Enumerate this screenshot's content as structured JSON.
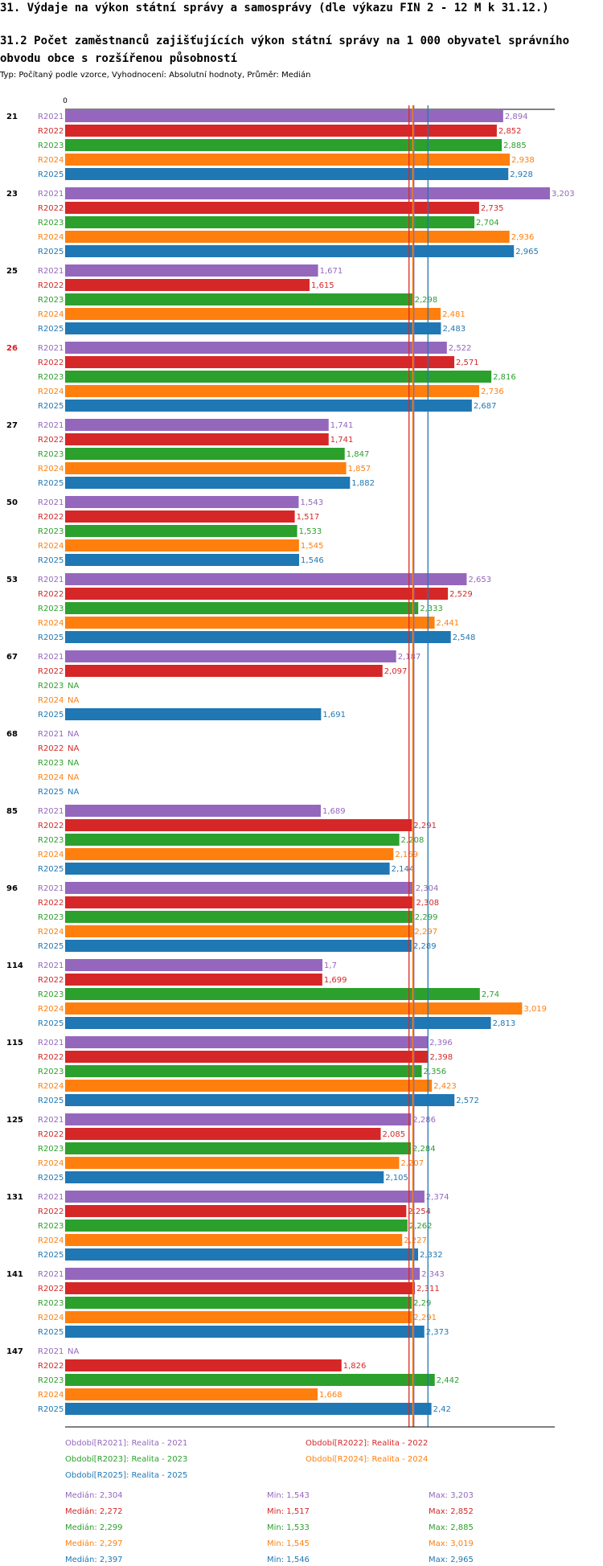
{
  "header": {
    "title": "31. Výdaje na výkon státní správy a samosprávy (dle výkazu FIN 2 - 12 M k 31.12.)",
    "subtitle": "31.2 Počet zaměstnanců zajišťujících výkon státní správy na 1 000 obyvatel správního obvodu obce s rozšířenou působností",
    "type_line": "Typ: Počítaný podle vzorce, Vyhodnocení: Absolutní hodnoty, Průměr: Medián"
  },
  "chart_data": {
    "type": "bar",
    "orientation": "horizontal",
    "xlim": [
      0,
      3.203
    ],
    "axis_zero_label": "0",
    "series": [
      {
        "name": "R2021",
        "color": "#9467bd"
      },
      {
        "name": "R2022",
        "color": "#d62728"
      },
      {
        "name": "R2023",
        "color": "#2ca02c"
      },
      {
        "name": "R2024",
        "color": "#ff7f0e"
      },
      {
        "name": "R2025",
        "color": "#1f77b4"
      }
    ],
    "groups": [
      {
        "label": "21",
        "highlight": false,
        "values": [
          2.894,
          2.852,
          2.885,
          2.938,
          2.928
        ],
        "labels": [
          "2,894",
          "2,852",
          "2,885",
          "2,938",
          "2,928"
        ]
      },
      {
        "label": "23",
        "highlight": false,
        "values": [
          3.203,
          2.735,
          2.704,
          2.936,
          2.965
        ],
        "labels": [
          "3,203",
          "2,735",
          "2,704",
          "2,936",
          "2,965"
        ]
      },
      {
        "label": "25",
        "highlight": false,
        "values": [
          1.671,
          1.615,
          2.298,
          2.481,
          2.483
        ],
        "labels": [
          "1,671",
          "1,615",
          "2,298",
          "2,481",
          "2,483"
        ]
      },
      {
        "label": "26",
        "highlight": true,
        "values": [
          2.522,
          2.571,
          2.816,
          2.736,
          2.687
        ],
        "labels": [
          "2,522",
          "2,571",
          "2,816",
          "2,736",
          "2,687"
        ]
      },
      {
        "label": "27",
        "highlight": false,
        "values": [
          1.741,
          1.741,
          1.847,
          1.857,
          1.882
        ],
        "labels": [
          "1,741",
          "1,741",
          "1,847",
          "1,857",
          "1,882"
        ]
      },
      {
        "label": "50",
        "highlight": false,
        "values": [
          1.543,
          1.517,
          1.533,
          1.545,
          1.546
        ],
        "labels": [
          "1,543",
          "1,517",
          "1,533",
          "1,545",
          "1,546"
        ]
      },
      {
        "label": "53",
        "highlight": false,
        "values": [
          2.653,
          2.529,
          2.333,
          2.441,
          2.548
        ],
        "labels": [
          "2,653",
          "2,529",
          "2,333",
          "2,441",
          "2,548"
        ]
      },
      {
        "label": "67",
        "highlight": false,
        "values": [
          2.187,
          2.097,
          null,
          null,
          1.691
        ],
        "labels": [
          "2,187",
          "2,097",
          "NA",
          "NA",
          "1,691"
        ]
      },
      {
        "label": "68",
        "highlight": false,
        "values": [
          null,
          null,
          null,
          null,
          null
        ],
        "labels": [
          "NA",
          "NA",
          "NA",
          "NA",
          "NA"
        ]
      },
      {
        "label": "85",
        "highlight": false,
        "values": [
          1.689,
          2.291,
          2.208,
          2.169,
          2.144
        ],
        "labels": [
          "1,689",
          "2,291",
          "2,208",
          "2,169",
          "2,144"
        ]
      },
      {
        "label": "96",
        "highlight": false,
        "values": [
          2.304,
          2.308,
          2.299,
          2.297,
          2.289
        ],
        "labels": [
          "2,304",
          "2,308",
          "2,299",
          "2,297",
          "2,289"
        ]
      },
      {
        "label": "114",
        "highlight": false,
        "values": [
          1.7,
          1.699,
          2.74,
          3.019,
          2.813
        ],
        "labels": [
          "1,7",
          "1,699",
          "2,74",
          "3,019",
          "2,813"
        ]
      },
      {
        "label": "115",
        "highlight": false,
        "values": [
          2.396,
          2.398,
          2.356,
          2.423,
          2.572
        ],
        "labels": [
          "2,396",
          "2,398",
          "2,356",
          "2,423",
          "2,572"
        ]
      },
      {
        "label": "125",
        "highlight": false,
        "values": [
          2.286,
          2.085,
          2.284,
          2.207,
          2.105
        ],
        "labels": [
          "2,286",
          "2,085",
          "2,284",
          "2,207",
          "2,105"
        ]
      },
      {
        "label": "131",
        "highlight": false,
        "values": [
          2.374,
          2.254,
          2.262,
          2.227,
          2.332
        ],
        "labels": [
          "2,374",
          "2,254",
          "2,262",
          "2,227",
          "2,332"
        ]
      },
      {
        "label": "141",
        "highlight": false,
        "values": [
          2.343,
          2.311,
          2.29,
          2.291,
          2.373
        ],
        "labels": [
          "2,343",
          "2,311",
          "2,29",
          "2,291",
          "2,373"
        ]
      },
      {
        "label": "147",
        "highlight": false,
        "values": [
          null,
          1.826,
          2.442,
          1.668,
          2.42
        ],
        "labels": [
          "NA",
          "1,826",
          "2,442",
          "1,668",
          "2,42"
        ]
      }
    ],
    "reference_lines": [
      {
        "series": "R2021",
        "value": 2.304,
        "color": "#9467bd"
      },
      {
        "series": "R2022",
        "value": 2.272,
        "color": "#d62728"
      },
      {
        "series": "R2023",
        "value": 2.299,
        "color": "#2ca02c"
      },
      {
        "series": "R2024",
        "value": 2.297,
        "color": "#ff7f0e"
      },
      {
        "series": "R2025",
        "value": 2.397,
        "color": "#1f77b4"
      }
    ]
  },
  "legend": {
    "periods": [
      {
        "text": "Období[R2021]: Realita - 2021",
        "color": "#9467bd"
      },
      {
        "text": "Období[R2022]: Realita - 2022",
        "color": "#d62728"
      },
      {
        "text": "Období[R2023]: Realita - 2023",
        "color": "#2ca02c"
      },
      {
        "text": "Období[R2024]: Realita - 2024",
        "color": "#ff7f0e"
      },
      {
        "text": "Období[R2025]: Realita - 2025",
        "color": "#1f77b4"
      }
    ],
    "stats": [
      {
        "median": "Medián: 2,304",
        "min": "Min: 1,543",
        "max": "Max: 3,203",
        "color": "#9467bd"
      },
      {
        "median": "Medián: 2,272",
        "min": "Min: 1,517",
        "max": "Max: 2,852",
        "color": "#d62728"
      },
      {
        "median": "Medián: 2,299",
        "min": "Min: 1,533",
        "max": "Max: 2,885",
        "color": "#2ca02c"
      },
      {
        "median": "Medián: 2,297",
        "min": "Min: 1,545",
        "max": "Max: 3,019",
        "color": "#ff7f0e"
      },
      {
        "median": "Medián: 2,397",
        "min": "Min: 1,546",
        "max": "Max: 2,965",
        "color": "#1f77b4"
      }
    ]
  }
}
